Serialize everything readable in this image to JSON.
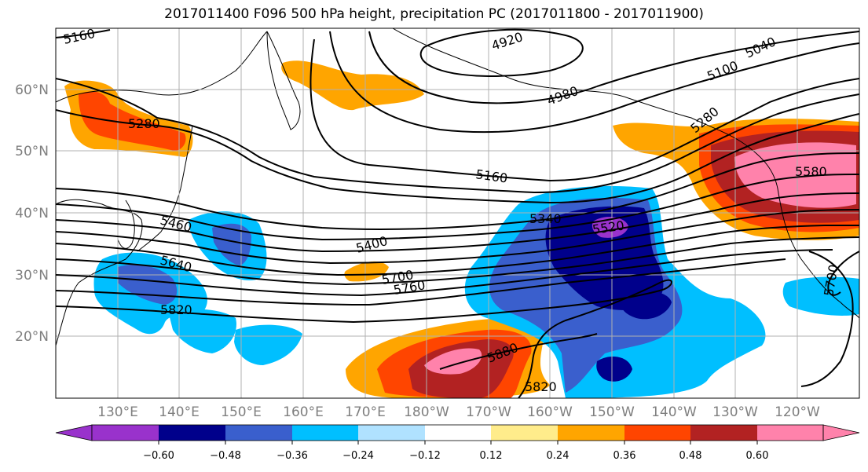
{
  "title": "2017011400 F096 500 hPa height, precipitation PC (2017011800 - 2017011900)",
  "axes": {
    "lat_labels": [
      "20°N",
      "30°N",
      "40°N",
      "50°N",
      "60°N"
    ],
    "lon_labels": [
      "130°E",
      "140°E",
      "150°E",
      "160°E",
      "170°E",
      "180°W",
      "170°W",
      "160°W",
      "150°W",
      "140°W",
      "130°W",
      "120°W"
    ],
    "grid": true
  },
  "colorbar": {
    "ticks": [
      "−0.60",
      "−0.48",
      "−0.36",
      "−0.24",
      "−0.12",
      "0.12",
      "0.24",
      "0.36",
      "0.48",
      "0.60"
    ],
    "colors": [
      "#9932cc",
      "#00008b",
      "#3a5fcd",
      "#00bfff",
      "#b0e2ff",
      "#ffffff",
      "#ffec8b",
      "#ffa500",
      "#ff4500",
      "#b22222",
      "#ff82ab"
    ],
    "extend": "both"
  },
  "contour_labels": [
    "5160",
    "4920",
    "5040",
    "5100",
    "4980",
    "5280",
    "5280",
    "5580",
    "5160",
    "5340",
    "5520",
    "5460",
    "5400",
    "5640",
    "5700",
    "5760",
    "5820",
    "5880",
    "5820",
    "5700"
  ],
  "layers": {
    "field": "precipitation PC",
    "contours": "500 hPa height"
  }
}
